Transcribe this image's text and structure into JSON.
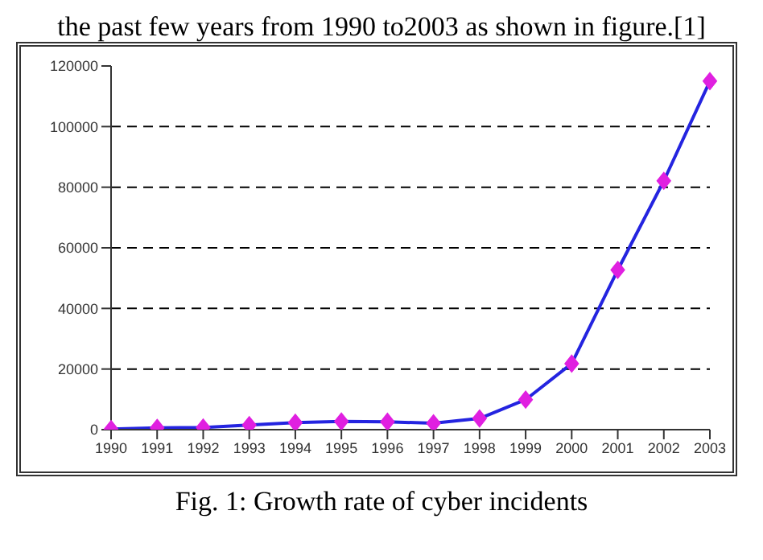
{
  "chart_data": {
    "type": "line",
    "annotations": [
      "the past few years from 1990 to2003 as shown in figure.[1]",
      "Fig. 1: Growth rate of cyber incidents"
    ],
    "categories": [
      "1990",
      "1991",
      "1992",
      "1993",
      "1994",
      "1995",
      "1996",
      "1997",
      "1998",
      "1999",
      "2000",
      "2001",
      "2002",
      "2003"
    ],
    "series": [
      {
        "color": "#2424e0",
        "values": [
          200,
          600,
          700,
          1500,
          2300,
          2700,
          2600,
          2100,
          3700,
          9900,
          21800,
          52700,
          82100,
          115000
        ]
      }
    ],
    "ylim": [
      0,
      120000
    ],
    "yticks": [
      0,
      20000,
      40000,
      60000,
      80000,
      100000,
      120000
    ],
    "grid": "y",
    "marker": "diamond",
    "line_style": "solid"
  }
}
